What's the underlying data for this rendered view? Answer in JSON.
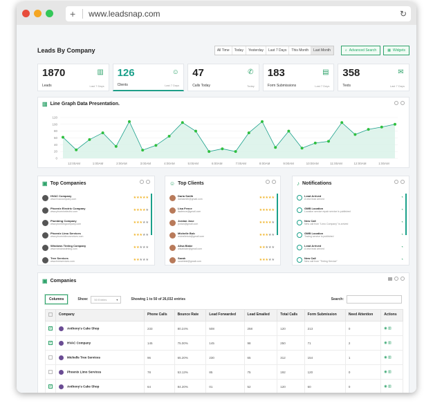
{
  "browser": {
    "url": "www.leadsnap.com",
    "dots": [
      "#e74c3c",
      "#f5a623",
      "#34c759"
    ]
  },
  "header": {
    "title": "Leads By Company",
    "ranges": [
      "All Time",
      "Today",
      "Yesterday",
      "Last 7 Days",
      "This Month",
      "Last Month"
    ],
    "advanced_search": "Advanced Search",
    "widgets": "Widgets"
  },
  "stats": [
    {
      "num": "1870",
      "label": "Leads",
      "period": "Last 7 Days",
      "icon": "bar-chart-icon"
    },
    {
      "num": "126",
      "label": "Clients",
      "period": "Last 7 Days",
      "icon": "user-icon"
    },
    {
      "num": "47",
      "label": "Calls Today",
      "period": "Today",
      "icon": "phone-icon"
    },
    {
      "num": "183",
      "label": "Form Submissions",
      "period": "Last 7 Days",
      "icon": "form-icon"
    },
    {
      "num": "358",
      "label": "Texts",
      "period": "Last 7 Days",
      "icon": "chat-icon"
    }
  ],
  "chart_title": "Line Graph Data Presentation.",
  "chart_data": {
    "type": "area",
    "title": "Line Graph Data Presentation.",
    "yticks": [
      120,
      100,
      80,
      60,
      40,
      20,
      0
    ],
    "ylim": [
      0,
      130
    ],
    "xticks": [
      "12:00AM",
      "1:00AM",
      "2:00AM",
      "3:00AM",
      "4:00AM",
      "5:00AM",
      "6:00AM",
      "7:00AM",
      "8:00AM",
      "9:00AM",
      "10:00AM",
      "11:00AM",
      "12:00AM",
      "1:00AM"
    ],
    "values": [
      62,
      25,
      55,
      75,
      35,
      108,
      24,
      38,
      65,
      105,
      80,
      20,
      28,
      20,
      75,
      108,
      32,
      80,
      30,
      45,
      50,
      105,
      70,
      85,
      92,
      100
    ],
    "grid": true
  },
  "top_companies": {
    "title": "Top Companies",
    "items": [
      {
        "name": "HVAC Company",
        "url": "www.hvaccompany.com",
        "stars": 5
      },
      {
        "name": "Phoenix Electric Company",
        "url": "www.phoenixelectric.com",
        "stars": 4
      },
      {
        "name": "Plumbing Company",
        "url": "www.plumbingcompany.com",
        "stars": 3
      },
      {
        "name": "Phoenix Limo Services",
        "url": "www.phoenixlimoservices.com",
        "stars": 3
      },
      {
        "name": "Windows Tinting Company",
        "url": "www.windowstinting.com",
        "stars": 2
      },
      {
        "name": "Tree Services",
        "url": "www.treeservices.com",
        "stars": 2
      }
    ]
  },
  "top_clients": {
    "title": "Top Clients",
    "items": [
      {
        "name": "Daria Smith",
        "email": "dariasmith@gmail.com",
        "stars": 5
      },
      {
        "name": "Lisa Fence",
        "email": "lisafence@gmail.com",
        "stars": 5
      },
      {
        "name": "Jordan Jose",
        "email": "jordan@gmail.com",
        "stars": 4
      },
      {
        "name": "Michelle Bob",
        "email": "michellebob@gmail.com",
        "stars": 3
      },
      {
        "name": "Alisa Blake",
        "email": "alisablake@gmail.com",
        "stars": 2
      },
      {
        "name": "Sarah",
        "email": "sarahtest@gmail.com",
        "stars": 3
      }
    ]
  },
  "notifications": {
    "title": "Notifications",
    "items": [
      {
        "title": "Lead Arrived",
        "sub": "A new lead arrived"
      },
      {
        "title": "GMB Location",
        "sub": "Location service repair service is published"
      },
      {
        "title": "New Call",
        "sub": "New call from \"Limo Company\" is arrived"
      },
      {
        "title": "GMB Location",
        "sub": "Towing service is published"
      },
      {
        "title": "Lead Arrived",
        "sub": "A new lead arrived"
      },
      {
        "title": "New Call",
        "sub": "New call from \"Tinting Service\""
      }
    ]
  },
  "companies": {
    "title": "Companies",
    "columns_btn": "Columns",
    "show_label": "Show:",
    "entries_placeholder": "50 Entries",
    "showing": "Showing 1 to 50 of 26,032 entries",
    "search_label": "Search:",
    "headers": [
      "Company",
      "Phone Calls",
      "Bounce Rate",
      "Lead Forwarded",
      "Lead Emailed",
      "Total Calls",
      "Form Submission",
      "Need Attention",
      "Actions"
    ],
    "rows": [
      {
        "checked": true,
        "name": "Anthony's Cake Shop",
        "cells": [
          "233",
          "80.24%",
          "508",
          "258",
          "120",
          "213",
          "0"
        ]
      },
      {
        "checked": true,
        "name": "HVAC Company",
        "cells": [
          "145",
          "75.00%",
          "145",
          "98",
          "250",
          "71",
          "2"
        ]
      },
      {
        "checked": false,
        "name": "Michelle Tree Services",
        "cells": [
          "96",
          "65.20%",
          "230",
          "65",
          "312",
          "154",
          "1"
        ]
      },
      {
        "checked": false,
        "name": "Phoenix Limo Services",
        "cells": [
          "78",
          "53.13%",
          "85",
          "75",
          "192",
          "120",
          "0"
        ]
      },
      {
        "checked": true,
        "name": "Anthony's Cake Shop",
        "cells": [
          "64",
          "84.20%",
          "01",
          "52",
          "120",
          "60",
          "0"
        ]
      }
    ]
  },
  "colors": {
    "accent": "#1aa08a",
    "green": "#2fa36b"
  }
}
